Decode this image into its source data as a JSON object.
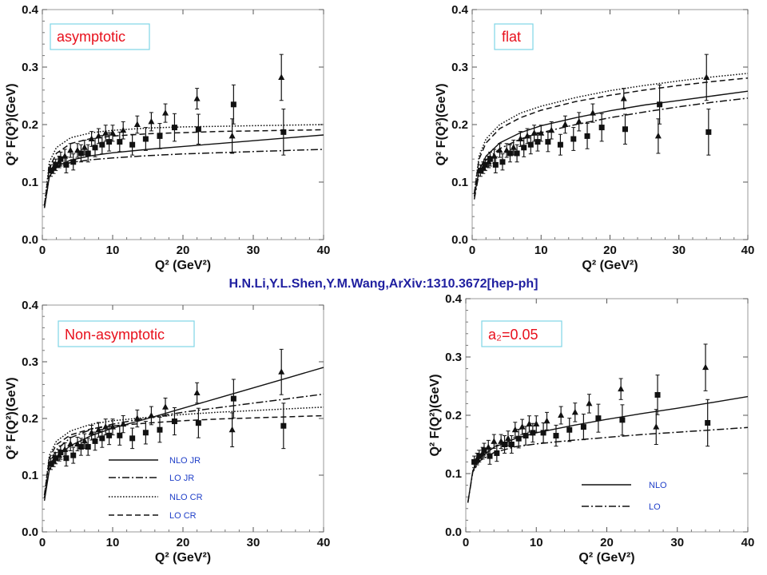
{
  "citation": "H.N.Li,Y.L.Shen,Y.M.Wang,ArXiv:1310.3672[hep-ph]",
  "colors": {
    "panel_label": "#e8101c",
    "legend_text": "#1f3fc8",
    "citation": "#1f1fa0",
    "label_box": "#7fd6e6"
  },
  "chart_data": [
    {
      "type": "scatter",
      "label": "asymptotic",
      "xlabel": "Q² (GeV²)",
      "ylabel": "Q² F(Q²)(GeV)",
      "xlim": [
        0,
        40
      ],
      "ylim": [
        0,
        0.4
      ],
      "xticks": [
        "0",
        "10",
        "20",
        "30",
        "40"
      ],
      "yticks": [
        "0.0",
        "0.1",
        "0.2",
        "0.3",
        "0.4"
      ],
      "curves": [
        {
          "style": "solid",
          "x": [
            0.3,
            1,
            2,
            4,
            7,
            10,
            15,
            20,
            25,
            30,
            35,
            40
          ],
          "y": [
            0.055,
            0.11,
            0.127,
            0.138,
            0.146,
            0.151,
            0.157,
            0.162,
            0.167,
            0.172,
            0.177,
            0.182
          ]
        },
        {
          "style": "dashdot",
          "x": [
            0.3,
            1,
            2,
            4,
            7,
            10,
            15,
            20,
            25,
            30,
            35,
            40
          ],
          "y": [
            0.055,
            0.11,
            0.125,
            0.134,
            0.139,
            0.142,
            0.146,
            0.149,
            0.151,
            0.153,
            0.155,
            0.157
          ]
        },
        {
          "style": "dotted",
          "x": [
            0.3,
            1,
            2,
            4,
            7,
            10,
            15,
            20,
            25,
            30,
            35,
            40
          ],
          "y": [
            0.06,
            0.135,
            0.16,
            0.177,
            0.186,
            0.19,
            0.194,
            0.196,
            0.197,
            0.198,
            0.199,
            0.2
          ]
        },
        {
          "style": "dashed",
          "x": [
            0.3,
            1,
            2,
            4,
            7,
            10,
            15,
            20,
            25,
            30,
            35,
            40
          ],
          "y": [
            0.06,
            0.125,
            0.15,
            0.167,
            0.176,
            0.18,
            0.184,
            0.186,
            0.188,
            0.189,
            0.19,
            0.191
          ]
        }
      ]
    },
    {
      "type": "scatter",
      "label": "flat",
      "xlabel": "Q² (GeV²)",
      "ylabel": "Q² F(Q²)(GeV)",
      "xlim": [
        0,
        40
      ],
      "ylim": [
        0,
        0.4
      ],
      "xticks": [
        "0",
        "10",
        "20",
        "30",
        "40"
      ],
      "yticks": [
        "0.0",
        "0.1",
        "0.2",
        "0.3",
        "0.4"
      ],
      "curves": [
        {
          "style": "solid",
          "x": [
            0.3,
            1,
            2,
            4,
            7,
            10,
            15,
            20,
            25,
            30,
            35,
            40
          ],
          "y": [
            0.075,
            0.12,
            0.145,
            0.168,
            0.186,
            0.198,
            0.212,
            0.224,
            0.234,
            0.242,
            0.25,
            0.258
          ]
        },
        {
          "style": "dashdot",
          "x": [
            0.3,
            1,
            2,
            4,
            7,
            10,
            15,
            20,
            25,
            30,
            35,
            40
          ],
          "y": [
            0.07,
            0.115,
            0.138,
            0.158,
            0.175,
            0.186,
            0.2,
            0.212,
            0.222,
            0.231,
            0.239,
            0.246
          ]
        },
        {
          "style": "dotted",
          "x": [
            0.3,
            1,
            2,
            4,
            7,
            10,
            15,
            20,
            25,
            30,
            35,
            40
          ],
          "y": [
            0.08,
            0.145,
            0.175,
            0.2,
            0.22,
            0.232,
            0.247,
            0.259,
            0.268,
            0.276,
            0.283,
            0.289
          ]
        },
        {
          "style": "dashed",
          "x": [
            0.3,
            1,
            2,
            4,
            7,
            10,
            15,
            20,
            25,
            30,
            35,
            40
          ],
          "y": [
            0.08,
            0.14,
            0.168,
            0.193,
            0.212,
            0.225,
            0.24,
            0.251,
            0.26,
            0.268,
            0.275,
            0.281
          ]
        }
      ]
    },
    {
      "type": "scatter",
      "label": "Non-asymptotic",
      "xlabel": "Q² (GeV²)",
      "ylabel": "Q² F(Q²)(GeV)",
      "xlim": [
        0,
        40
      ],
      "ylim": [
        0,
        0.4
      ],
      "xticks": [
        "0",
        "10",
        "20",
        "30",
        "40"
      ],
      "yticks": [
        "0.0",
        "0.1",
        "0.2",
        "0.3",
        "0.4"
      ],
      "legend": [
        "NLO JR",
        "LO JR",
        "NLO CR",
        "LO CR"
      ],
      "curves": [
        {
          "style": "solid",
          "x": [
            0.3,
            1,
            2,
            4,
            7,
            10,
            15,
            20,
            25,
            30,
            35,
            40
          ],
          "y": [
            0.055,
            0.11,
            0.132,
            0.152,
            0.17,
            0.183,
            0.2,
            0.218,
            0.236,
            0.254,
            0.272,
            0.29
          ]
        },
        {
          "style": "dashdot",
          "x": [
            0.3,
            1,
            2,
            4,
            7,
            10,
            15,
            20,
            25,
            30,
            35,
            40
          ],
          "y": [
            0.06,
            0.12,
            0.145,
            0.166,
            0.181,
            0.19,
            0.201,
            0.211,
            0.219,
            0.227,
            0.235,
            0.243
          ]
        },
        {
          "style": "dotted",
          "x": [
            0.3,
            1,
            2,
            4,
            7,
            10,
            15,
            20,
            25,
            30,
            35,
            40
          ],
          "y": [
            0.065,
            0.135,
            0.16,
            0.178,
            0.19,
            0.196,
            0.202,
            0.207,
            0.211,
            0.214,
            0.217,
            0.22
          ]
        },
        {
          "style": "dashed",
          "x": [
            0.3,
            1,
            2,
            4,
            7,
            10,
            15,
            20,
            25,
            30,
            35,
            40
          ],
          "y": [
            0.065,
            0.13,
            0.154,
            0.171,
            0.182,
            0.187,
            0.192,
            0.196,
            0.199,
            0.201,
            0.203,
            0.205
          ]
        }
      ]
    },
    {
      "type": "scatter",
      "label": "a₂=0.05",
      "xlabel": "Q² (GeV²)",
      "ylabel": "Q² F(Q²)(GeV)",
      "xlim": [
        0,
        40
      ],
      "ylim": [
        0,
        0.4
      ],
      "xticks": [
        "0",
        "10",
        "20",
        "30",
        "40"
      ],
      "yticks": [
        "0.0",
        "0.1",
        "0.2",
        "0.3",
        "0.4"
      ],
      "legend": [
        "NLO",
        "LO"
      ],
      "curves": [
        {
          "style": "solid",
          "x": [
            0.3,
            1,
            2,
            4,
            7,
            10,
            15,
            20,
            25,
            30,
            35,
            40
          ],
          "y": [
            0.05,
            0.105,
            0.127,
            0.145,
            0.16,
            0.17,
            0.182,
            0.193,
            0.203,
            0.212,
            0.222,
            0.232
          ]
        },
        {
          "style": "dashdot",
          "x": [
            0.3,
            1,
            2,
            4,
            7,
            10,
            15,
            20,
            25,
            30,
            35,
            40
          ],
          "y": [
            0.05,
            0.103,
            0.122,
            0.136,
            0.146,
            0.151,
            0.157,
            0.162,
            0.167,
            0.171,
            0.175,
            0.179
          ]
        }
      ]
    }
  ],
  "experimental_points": {
    "babar": {
      "marker": "triangle",
      "x": [
        1.6,
        2.4,
        3.2,
        4.0,
        5.0,
        6.0,
        7.0,
        8.0,
        9.0,
        10.0,
        11.5,
        13.5,
        15.5,
        17.5,
        22.0,
        27.0,
        34.0
      ],
      "y": [
        0.125,
        0.135,
        0.145,
        0.155,
        0.155,
        0.16,
        0.175,
        0.18,
        0.185,
        0.185,
        0.19,
        0.2,
        0.205,
        0.22,
        0.245,
        0.18,
        0.282
      ],
      "err": [
        0.01,
        0.01,
        0.012,
        0.012,
        0.012,
        0.013,
        0.013,
        0.013,
        0.014,
        0.014,
        0.015,
        0.015,
        0.016,
        0.016,
        0.018,
        0.03,
        0.04
      ]
    },
    "belle": {
      "marker": "square",
      "x": [
        1.2,
        1.9,
        2.6,
        3.4,
        4.4,
        5.5,
        6.5,
        7.5,
        8.5,
        9.5,
        11.0,
        12.8,
        14.7,
        16.7,
        18.8,
        22.2,
        27.2,
        34.3
      ],
      "y": [
        0.12,
        0.13,
        0.14,
        0.13,
        0.135,
        0.15,
        0.15,
        0.16,
        0.165,
        0.17,
        0.17,
        0.165,
        0.175,
        0.18,
        0.195,
        0.192,
        0.235,
        0.187
      ],
      "err": [
        0.01,
        0.01,
        0.012,
        0.014,
        0.014,
        0.015,
        0.015,
        0.016,
        0.016,
        0.016,
        0.017,
        0.018,
        0.02,
        0.022,
        0.024,
        0.026,
        0.034,
        0.04
      ]
    }
  }
}
